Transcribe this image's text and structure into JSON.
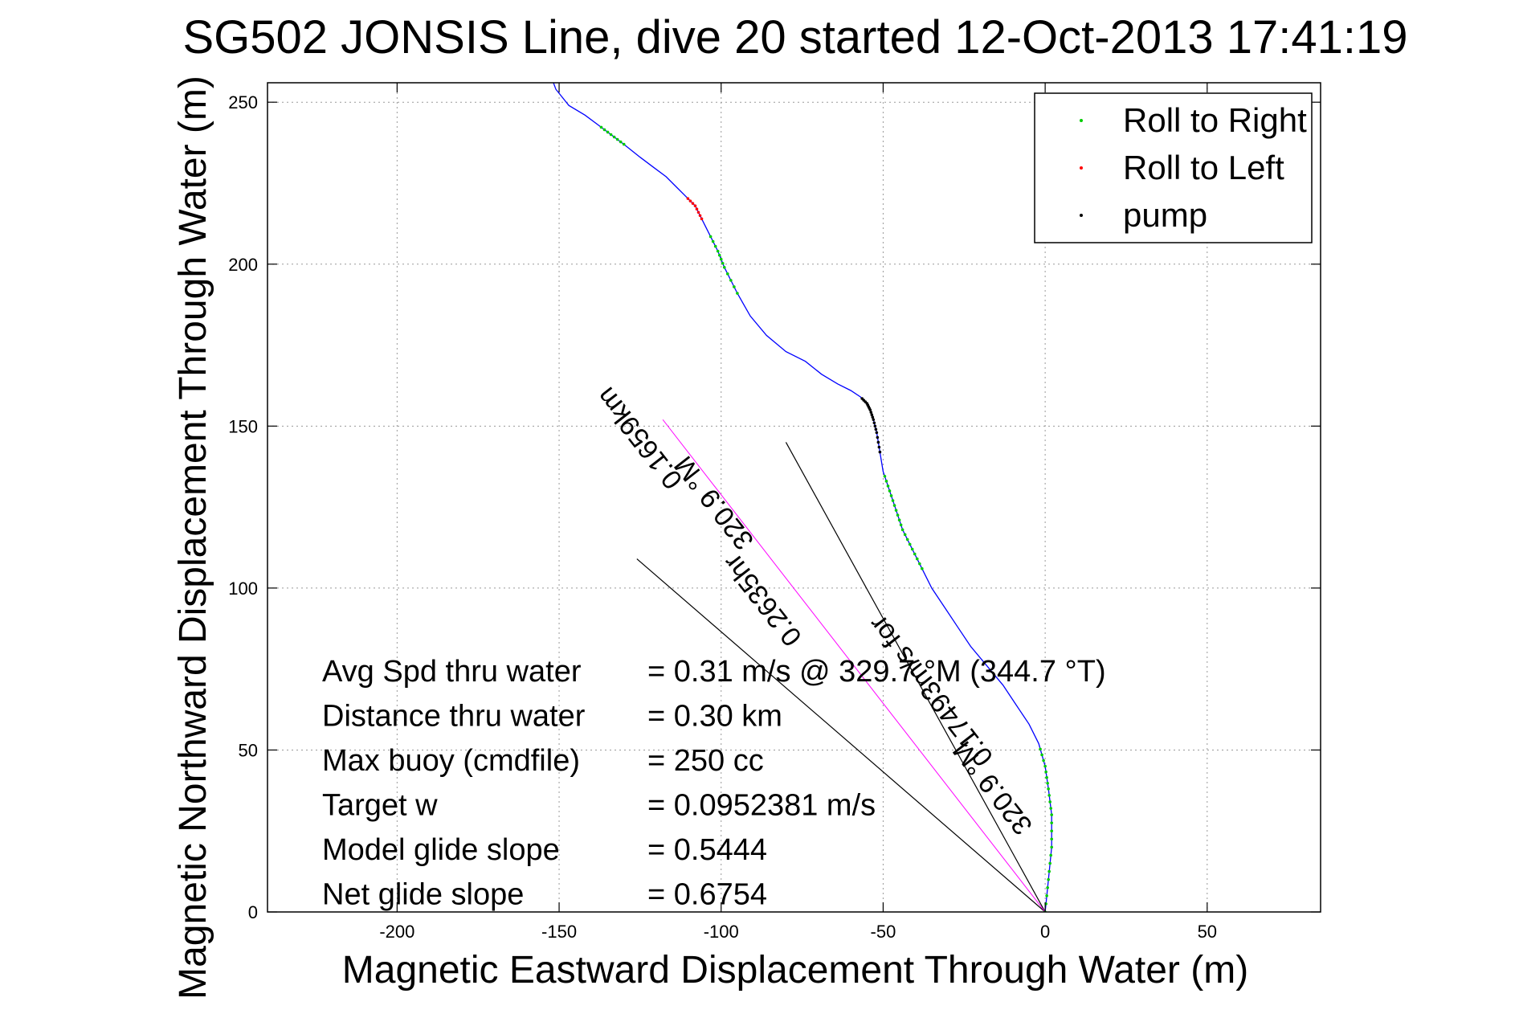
{
  "chart_data": {
    "type": "line",
    "title": "SG502 JONSIS Line, dive 20 started 12-Oct-2013 17:41:19",
    "xlabel": "Magnetic Eastward Displacement Through Water (m)",
    "ylabel": "Magnetic Northward Displacement Through Water (m)",
    "xlim": [
      -240,
      85
    ],
    "ylim": [
      0,
      256
    ],
    "xticks": [
      -200,
      -150,
      -100,
      -50,
      0,
      50
    ],
    "yticks": [
      0,
      50,
      100,
      150,
      200,
      250
    ],
    "grid": true,
    "legend_position": "top-right",
    "legend": [
      {
        "name": "Roll to Right",
        "color": "#00cc00"
      },
      {
        "name": "Roll to Left",
        "color": "#ff0000"
      },
      {
        "name": "pump",
        "color": "#000000"
      }
    ],
    "track_color": "#0000ff",
    "track": {
      "x": [
        0,
        1,
        2,
        2,
        1,
        0,
        -2,
        -5,
        -9,
        -13,
        -18,
        -23,
        -27,
        -31,
        -35,
        -38,
        -41,
        -44,
        -46,
        -48,
        -50,
        -51,
        -52,
        -53,
        -54,
        -55,
        -57,
        -60,
        -64,
        -69,
        -74,
        -80,
        -86,
        -91,
        -95,
        -99,
        -101,
        -104,
        -106,
        -108,
        -111,
        -114,
        -117,
        -121,
        -125,
        -130,
        -134,
        -138,
        -142,
        -147,
        -151,
        -154
      ],
      "y": [
        0,
        10,
        20,
        30,
        38,
        45,
        52,
        58,
        64,
        70,
        76,
        82,
        88,
        94,
        100,
        106,
        112,
        118,
        124,
        130,
        136,
        142,
        148,
        152,
        155,
        157,
        159,
        161,
        163,
        166,
        170,
        173,
        178,
        184,
        191,
        199,
        204,
        210,
        214,
        218,
        221,
        224,
        227,
        230,
        233,
        237,
        240,
        243,
        246,
        249,
        254,
        262
      ]
    },
    "roll_right_segments": [
      [
        0,
        6
      ],
      [
        15,
        20
      ],
      [
        34,
        37
      ],
      [
        45,
        47
      ]
    ],
    "roll_left_segments": [
      [
        38,
        40
      ]
    ],
    "pump_segments": [
      [
        21,
        26
      ]
    ],
    "reference_lines": [
      {
        "x": [
          0,
          -80
        ],
        "y": [
          0,
          145
        ]
      },
      {
        "x": [
          0,
          -126
        ],
        "y": [
          0,
          109
        ]
      }
    ],
    "net_line": {
      "x": [
        0,
        -118
      ],
      "y": [
        0,
        152
      ],
      "color": "#ff00ff"
    },
    "annotations": [
      {
        "text": "0.1659km",
        "x": -123,
        "y": 148,
        "angle": 52
      },
      {
        "text": "0.2635hr",
        "x": -85,
        "y": 98,
        "angle": 52
      },
      {
        "text": "320.9 °M",
        "x": -100,
        "y": 128,
        "angle": 52
      },
      {
        "text": "0.17493m/s for",
        "x": -33,
        "y": 70,
        "angle": 52
      },
      {
        "text": "320.9 °M",
        "x": -14,
        "y": 40,
        "angle": 52
      }
    ],
    "stats": [
      {
        "label": "Avg Spd thru water",
        "value": "=  0.31 m/s @ 329.7  °M (344.7 °T)"
      },
      {
        "label": "Distance thru water",
        "value": "=  0.30 km"
      },
      {
        "label": "Max buoy (cmdfile)",
        "value": "= 250 cc"
      },
      {
        "label": "Target w",
        "value": "= 0.0952381 m/s"
      },
      {
        "label": "Model glide slope",
        "value": "= 0.5444"
      },
      {
        "label": "Net glide slope",
        "value": "= 0.6754"
      }
    ]
  }
}
